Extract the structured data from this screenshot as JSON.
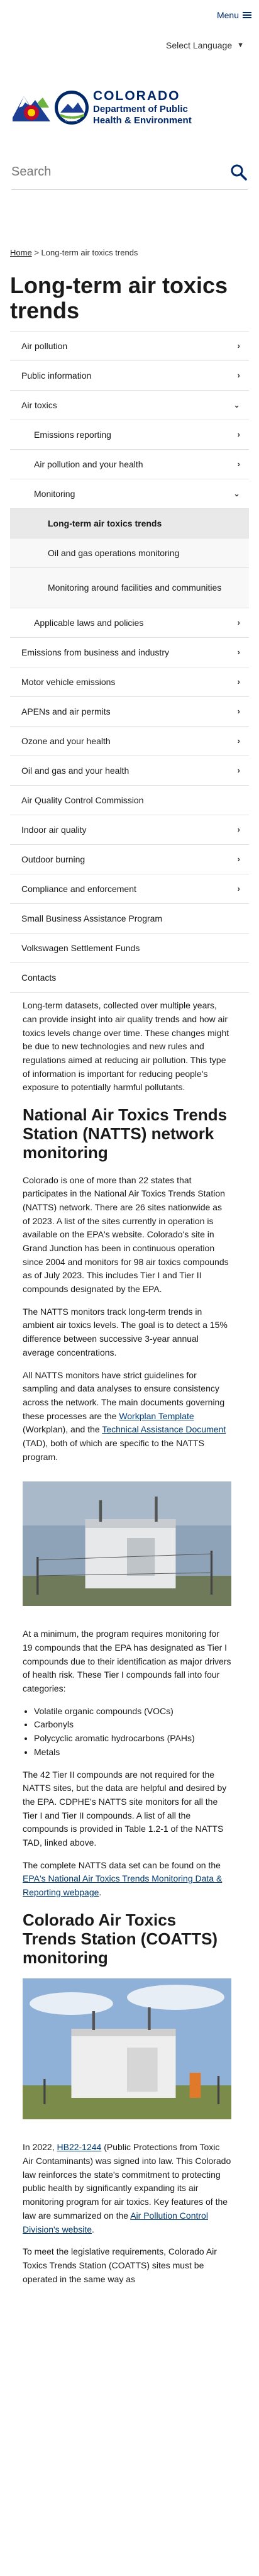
{
  "header": {
    "menu_label": "Menu",
    "language_label": "Select Language",
    "state_name": "COLORADO",
    "dept_line1": "Department of Public",
    "dept_line2": "Health & Environment",
    "cdphe_badge": "CDPHE"
  },
  "search": {
    "placeholder": "Search"
  },
  "breadcrumb": {
    "home": "Home",
    "separator": ">",
    "current": "Long-term air toxics trends"
  },
  "page_title": "Long-term air toxics trends",
  "sidenav": [
    {
      "label": "Air pollution",
      "arrow": "›"
    },
    {
      "label": "Public information",
      "arrow": "›"
    },
    {
      "label": "Air toxics",
      "arrow": "⌄"
    },
    {
      "label": "Emissions reporting",
      "arrow": "›"
    },
    {
      "label": "Air pollution and your health",
      "arrow": "›"
    },
    {
      "label": "Monitoring",
      "arrow": "⌄"
    },
    {
      "label": "Long-term air toxics trends",
      "arrow": ""
    },
    {
      "label": "Oil and gas operations monitoring",
      "arrow": ""
    },
    {
      "label": "Monitoring around facilities and communities",
      "arrow": ""
    },
    {
      "label": "Applicable laws and policies",
      "arrow": "›"
    },
    {
      "label": "Emissions from business and industry",
      "arrow": "›"
    },
    {
      "label": "Motor vehicle emissions",
      "arrow": "›"
    },
    {
      "label": "APENs and air permits",
      "arrow": "›"
    },
    {
      "label": "Ozone and your health",
      "arrow": "›"
    },
    {
      "label": "Oil and gas and your health",
      "arrow": "›"
    },
    {
      "label": "Air Quality Control Commission",
      "arrow": ""
    },
    {
      "label": "Indoor air quality",
      "arrow": "›"
    },
    {
      "label": "Outdoor burning",
      "arrow": "›"
    },
    {
      "label": "Compliance and enforcement",
      "arrow": "›"
    },
    {
      "label": "Small Business Assistance Program",
      "arrow": ""
    },
    {
      "label": "Volkswagen Settlement Funds",
      "arrow": ""
    },
    {
      "label": "Contacts",
      "arrow": ""
    }
  ],
  "content": {
    "intro": "Long-term datasets, collected over multiple years, can provide insight into air quality trends and how air toxics levels change over time. These changes might be due to new technologies and new rules and regulations aimed at reducing air pollution. This type of information is important for reducing people's exposure to potentially harmful pollutants.",
    "natts_heading": "National Air Toxics Trends Station (NATTS) network monitoring",
    "natts_p1": "Colorado is one of more than 22 states that participates in the National Air Toxics Trends Station (NATTS) network. There are 26 sites nationwide as of 2023. A list of the sites currently in operation is available on the EPA's website. Colorado's site in Grand Junction has been in continuous operation since 2004 and monitors for 98 air toxics compounds as of July 2023. This includes Tier I and Tier II compounds designated by the EPA.",
    "natts_p2": "The NATTS monitors track long-term trends in ambient air toxics levels. The goal is to detect a 15% difference between successive 3-year annual average concentrations.",
    "natts_p3_a": "All NATTS monitors have strict guidelines for sampling and data analyses to ensure consistency across the network. The main documents governing these processes are the ",
    "natts_p3_link1": "Workplan Template",
    "natts_p3_b": " (Workplan), and the ",
    "natts_p3_link2": "Technical Assistance Document",
    "natts_p3_c": " (TAD), both of which are specific to the NATTS program.",
    "natts_p4": "At a minimum, the program requires monitoring for 19 compounds that the EPA has designated as Tier I compounds due to their identification as major drivers of health risk. These Tier I compounds fall into four categories:",
    "categories": [
      "Volatile organic compounds (VOCs)",
      "Carbonyls",
      "Polycyclic aromatic hydrocarbons (PAHs)",
      "Metals"
    ],
    "natts_p5": "The 42 Tier II compounds are not required for the NATTS sites, but the data are helpful and desired by the EPA. CDPHE's NATTS site monitors for all the Tier I and Tier II compounds. A list of all the compounds is provided  in Table 1.2-1 of the NATTS TAD, linked above.",
    "natts_p6_a": "The complete NATTS data set can be found on the ",
    "natts_p6_link": "EPA's National Air Toxics Trends Monitoring Data & Reporting webpage",
    "natts_p6_b": ".",
    "coatts_heading": "Colorado Air Toxics Trends Station (COATTS) monitoring",
    "coatts_p1_a": "In 2022, ",
    "coatts_p1_link1": "HB22-1244",
    "coatts_p1_b": " (Public Protections from Toxic Air Contaminants) was signed into law. This Colorado law reinforces the state's commitment to protecting public health by significantly expanding its air monitoring program for air toxics. Key features of the law are summarized on the ",
    "coatts_p1_link2": "Air Pollution Control Division's website",
    "coatts_p1_c": ".",
    "coatts_p2": "To meet the legislative requirements, Colorado Air Toxics Trends Station (COATTS) sites must be operated in the same way as"
  }
}
